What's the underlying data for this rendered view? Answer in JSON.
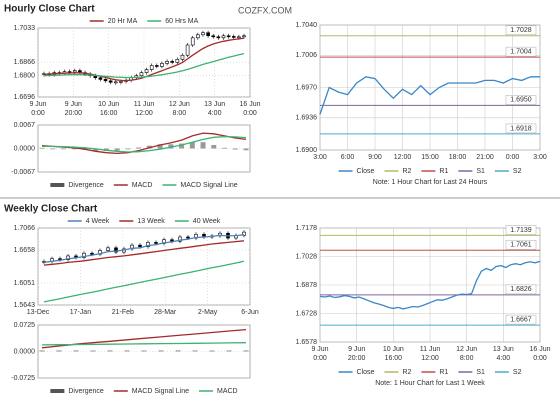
{
  "page": {
    "site": "COZFX.COM",
    "hourly_title": "Hourly Close Chart",
    "weekly_title": "Weekly Close Chart"
  },
  "chart_data": [
    {
      "type": "candlestick",
      "legend": "top",
      "grid": true,
      "ylim": [
        1.6696,
        1.7033
      ],
      "yticks": [
        {
          "value": 1.7033,
          "label": "1.7033"
        },
        {
          "value": 1.6866,
          "label": "1.6866"
        },
        {
          "value": 1.68,
          "label": "1.6800"
        },
        {
          "value": 1.6696,
          "label": "1.6696"
        }
      ],
      "x_labels": [
        [
          "9 Jun",
          "0:00"
        ],
        [
          "9 Jun",
          "20:00"
        ],
        [
          "10 Jun",
          "16:00"
        ],
        [
          "11 Jun",
          "12:00"
        ],
        [
          "12 Jun",
          "8:00"
        ],
        [
          "13 Jun",
          "4:00"
        ],
        [
          "16 Jun",
          "0:00"
        ]
      ],
      "price_color": "#000000",
      "price_values": [
        1.681,
        1.6805,
        1.6815,
        1.6812,
        1.682,
        1.6818,
        1.6825,
        1.6815,
        1.6808,
        1.68,
        1.679,
        1.6782,
        1.6775,
        1.6768,
        1.677,
        1.6772,
        1.6778,
        1.679,
        1.68,
        1.6815,
        1.683,
        1.685,
        1.6845,
        1.686,
        1.687,
        1.6865,
        1.688,
        1.69,
        1.695,
        1.6985,
        1.7,
        1.701,
        1.6995,
        1.699,
        1.6985,
        1.6995,
        1.6992,
        1.6988,
        1.699,
        1.6995
      ],
      "series": [
        {
          "name": "20 Hr MA",
          "color": "#a52a2a",
          "values": [
            1.6808,
            1.6808,
            1.681,
            1.6811,
            1.6812,
            1.6813,
            1.6814,
            1.6814,
            1.6812,
            1.6808,
            1.6803,
            1.6797,
            1.6791,
            1.6785,
            1.678,
            1.6777,
            1.6776,
            1.6778,
            1.6782,
            1.6788,
            1.6796,
            1.6806,
            1.6815,
            1.6824,
            1.6834,
            1.6843,
            1.6853,
            1.6865,
            1.6882,
            1.69,
            1.6917,
            1.6933,
            1.6945,
            1.6955,
            1.6962,
            1.6968,
            1.6973,
            1.6977,
            1.698,
            1.6983
          ]
        },
        {
          "name": "60 Hrs MA",
          "color": "#3cb371",
          "values": [
            1.68,
            1.6801,
            1.6802,
            1.6803,
            1.6804,
            1.6805,
            1.6805,
            1.6805,
            1.6804,
            1.6803,
            1.6801,
            1.6799,
            1.6797,
            1.6795,
            1.6793,
            1.6792,
            1.6791,
            1.6791,
            1.6792,
            1.6793,
            1.6795,
            1.6798,
            1.6801,
            1.6805,
            1.6809,
            1.6813,
            1.6818,
            1.6824,
            1.6831,
            1.6839,
            1.6847,
            1.6855,
            1.6862,
            1.6869,
            1.6876,
            1.6883,
            1.689,
            1.6896,
            1.6902,
            1.6908
          ]
        }
      ]
    },
    {
      "type": "macd",
      "legend": "bottom",
      "grid": true,
      "ylim": [
        -0.0067,
        0.0067
      ],
      "yticks": [
        {
          "value": 0.0067,
          "label": "0.0067"
        },
        {
          "value": 0,
          "label": "0.0000"
        },
        {
          "value": -0.0067,
          "label": "-0.0067"
        }
      ],
      "series": [
        {
          "name": "Divergence",
          "style": "bar",
          "color": "#555555",
          "values": [
            0.0002,
            0,
            -0.0001,
            -0.0002,
            -0.0004,
            -0.0007,
            -0.0007,
            -0.0006,
            -0.0002,
            0.0003,
            0.0008,
            0.0012,
            0.0012,
            0.0014,
            0.0018,
            0.0018,
            0.001,
            0.0002,
            -0.0003,
            -0.0005
          ]
        },
        {
          "name": "MACD",
          "color": "#a52a2a",
          "values": [
            0.0008,
            0.0006,
            0.0004,
            0.0002,
            -0.0002,
            -0.0008,
            -0.0012,
            -0.0014,
            -0.0012,
            -0.0006,
            0.0002,
            0.001,
            0.0016,
            0.0024,
            0.0036,
            0.0044,
            0.0042,
            0.0036,
            0.003,
            0.0026
          ]
        },
        {
          "name": "MACD Signal Line",
          "color": "#3cb371",
          "values": [
            0.0006,
            0.0006,
            0.0005,
            0.0004,
            0.0002,
            -0.0001,
            -0.0005,
            -0.0008,
            -0.001,
            -0.0009,
            -0.0006,
            -0.0002,
            0.0004,
            0.001,
            0.0018,
            0.0026,
            0.0032,
            0.0034,
            0.0033,
            0.0031
          ]
        }
      ]
    },
    {
      "type": "line",
      "legend": "bottom",
      "grid": true,
      "ylim": [
        1.69,
        1.704
      ],
      "yticks": [
        {
          "value": 1.704,
          "label": "1.7040"
        },
        {
          "value": 1.7006,
          "label": "1.7006"
        },
        {
          "value": 1.697,
          "label": "1.6970"
        },
        {
          "value": 1.6936,
          "label": "1.6936"
        },
        {
          "value": 1.69,
          "label": "1.6900"
        }
      ],
      "x_labels": [
        [
          "3:00"
        ],
        [
          "6:00"
        ],
        [
          "9:00"
        ],
        [
          "12:00"
        ],
        [
          "15:00"
        ],
        [
          "18:00"
        ],
        [
          "21:00"
        ],
        [
          "0:00"
        ],
        [
          "3:00"
        ]
      ],
      "series": [
        {
          "name": "Close",
          "color": "#3a87c8",
          "values": [
            1.694,
            1.697,
            1.6965,
            1.6962,
            1.6975,
            1.6982,
            1.698,
            1.6968,
            1.6958,
            1.6968,
            1.6962,
            1.6972,
            1.6962,
            1.697,
            1.6975,
            1.6975,
            1.6975,
            1.6975,
            1.6978,
            1.6978,
            1.6975,
            1.698,
            1.6978,
            1.6982,
            1.6982
          ]
        }
      ],
      "levels": [
        {
          "name": "R2",
          "value": 1.7028,
          "label": "1.7028",
          "color": "#b8b860"
        },
        {
          "name": "R1",
          "value": 1.7004,
          "label": "1.7004",
          "color": "#c0504d"
        },
        {
          "name": "S1",
          "value": 1.695,
          "label": "1.6950",
          "color": "#8064a2"
        },
        {
          "name": "S2",
          "value": 1.6918,
          "label": "1.6918",
          "color": "#4bacc6"
        }
      ],
      "note": "Note: 1 Hour Chart for Last 24 Hours"
    },
    {
      "type": "candlestick",
      "legend": "top",
      "grid": true,
      "ylim": [
        1.5643,
        1.7066
      ],
      "yticks": [
        {
          "value": 1.7066,
          "label": "1.7066"
        },
        {
          "value": 1.6658,
          "label": "1.6658"
        },
        {
          "value": 1.6051,
          "label": "1.6051"
        },
        {
          "value": 1.5643,
          "label": "1.5643"
        }
      ],
      "x_labels": [
        [
          "13-Dec"
        ],
        [
          "17-Jan"
        ],
        [
          "21-Feb"
        ],
        [
          "28-Mar"
        ],
        [
          "2-May"
        ],
        [
          "6-Jun"
        ]
      ],
      "price_color": "#000000",
      "price_values": [
        1.645,
        1.65,
        1.648,
        1.655,
        1.652,
        1.66,
        1.658,
        1.665,
        1.67,
        1.662,
        1.668,
        1.675,
        1.672,
        1.68,
        1.678,
        1.685,
        1.682,
        1.69,
        1.688,
        1.695,
        1.69,
        1.692,
        1.697,
        1.688,
        1.693,
        1.699
      ],
      "series": [
        {
          "name": "4 Week",
          "color": "#4f81bd",
          "values": [
            1.643,
            1.645,
            1.647,
            1.6495,
            1.6515,
            1.654,
            1.6565,
            1.659,
            1.663,
            1.664,
            1.666,
            1.669,
            1.67,
            1.674,
            1.676,
            1.679,
            1.681,
            1.684,
            1.686,
            1.689,
            1.69,
            1.691,
            1.693,
            1.692,
            1.6925,
            1.694
          ]
        },
        {
          "name": "13 Week",
          "color": "#a52a2a",
          "values": [
            1.638,
            1.6395,
            1.641,
            1.643,
            1.6445,
            1.646,
            1.648,
            1.65,
            1.652,
            1.6535,
            1.655,
            1.657,
            1.659,
            1.661,
            1.663,
            1.665,
            1.667,
            1.669,
            1.671,
            1.673,
            1.675,
            1.677,
            1.6785,
            1.68,
            1.6815,
            1.683
          ]
        },
        {
          "name": "40 Week",
          "color": "#3cb371",
          "values": [
            1.57,
            1.573,
            1.576,
            1.579,
            1.582,
            1.585,
            1.588,
            1.591,
            1.594,
            1.597,
            1.6,
            1.603,
            1.606,
            1.609,
            1.612,
            1.615,
            1.618,
            1.621,
            1.624,
            1.627,
            1.63,
            1.633,
            1.636,
            1.639,
            1.642,
            1.645
          ]
        }
      ]
    },
    {
      "type": "macd",
      "legend": "bottom",
      "grid": true,
      "ylim": [
        -0.0725,
        0.0725
      ],
      "yticks": [
        {
          "value": 0.0725,
          "label": "0.0725"
        },
        {
          "value": 0,
          "label": "0.0000"
        },
        {
          "value": -0.0725,
          "label": "-0.0725"
        }
      ],
      "series": [
        {
          "name": "Divergence",
          "style": "bar",
          "color": "#555555",
          "values": [
            0.003,
            0.0032,
            0.003,
            0.0028,
            0.003,
            0.0031,
            0.0029,
            0.003,
            0.0032,
            0.003,
            0.0028,
            0.003,
            0.0031
          ]
        },
        {
          "name": "MACD Signal Line",
          "color": "#a52a2a",
          "values": [
            0.01,
            0.015,
            0.02,
            0.024,
            0.028,
            0.032,
            0.036,
            0.04,
            0.044,
            0.048,
            0.052,
            0.056,
            0.06
          ]
        },
        {
          "name": "MACD",
          "color": "#3cb371",
          "values": [
            0.018,
            0.0185,
            0.019,
            0.0195,
            0.02,
            0.0205,
            0.021,
            0.0215,
            0.022,
            0.0225,
            0.023,
            0.0235,
            0.024
          ]
        }
      ]
    },
    {
      "type": "line",
      "legend": "bottom",
      "grid": true,
      "ylim": [
        1.6578,
        1.7178
      ],
      "yticks": [
        {
          "value": 1.7178,
          "label": "1.7178"
        },
        {
          "value": 1.7028,
          "label": "1.7028"
        },
        {
          "value": 1.6878,
          "label": "1.6878"
        },
        {
          "value": 1.6728,
          "label": "1.6728"
        },
        {
          "value": 1.6578,
          "label": "1.6578"
        }
      ],
      "x_labels": [
        [
          "9 Jun",
          "0:00"
        ],
        [
          "9 Jun",
          "20:00"
        ],
        [
          "10 Jun",
          "16:00"
        ],
        [
          "11 Jun",
          "12:00"
        ],
        [
          "12 Jun",
          "8:00"
        ],
        [
          "13 Jun",
          "4:00"
        ],
        [
          "16 Jun",
          "0:00"
        ]
      ],
      "series": [
        {
          "name": "Close",
          "color": "#3a87c8",
          "values": [
            1.6818,
            1.6815,
            1.682,
            1.6812,
            1.6816,
            1.6822,
            1.6818,
            1.681,
            1.6815,
            1.6805,
            1.6795,
            1.6785,
            1.6778,
            1.677,
            1.676,
            1.6755,
            1.676,
            1.6752,
            1.6758,
            1.6765,
            1.6762,
            1.677,
            1.678,
            1.679,
            1.68,
            1.6798,
            1.6805,
            1.6815,
            1.6825,
            1.683,
            1.6828,
            1.6832,
            1.69,
            1.695,
            1.6965,
            1.6955,
            1.6975,
            1.698,
            1.697,
            1.6985,
            1.699,
            1.6985,
            1.6995,
            1.7,
            1.6995,
            1.7002
          ]
        }
      ],
      "levels": [
        {
          "name": "R2",
          "value": 1.7139,
          "label": "1.7139",
          "color": "#b8b860"
        },
        {
          "name": "R1",
          "value": 1.7061,
          "label": "1.7061",
          "color": "#c0504d"
        },
        {
          "name": "S1",
          "value": 1.6826,
          "label": "1.6826",
          "color": "#8064a2"
        },
        {
          "name": "S2",
          "value": 1.6667,
          "label": "1.6667",
          "color": "#4bacc6"
        }
      ],
      "note": "Note: 1 Hour Chart for Last 1 Week"
    }
  ]
}
